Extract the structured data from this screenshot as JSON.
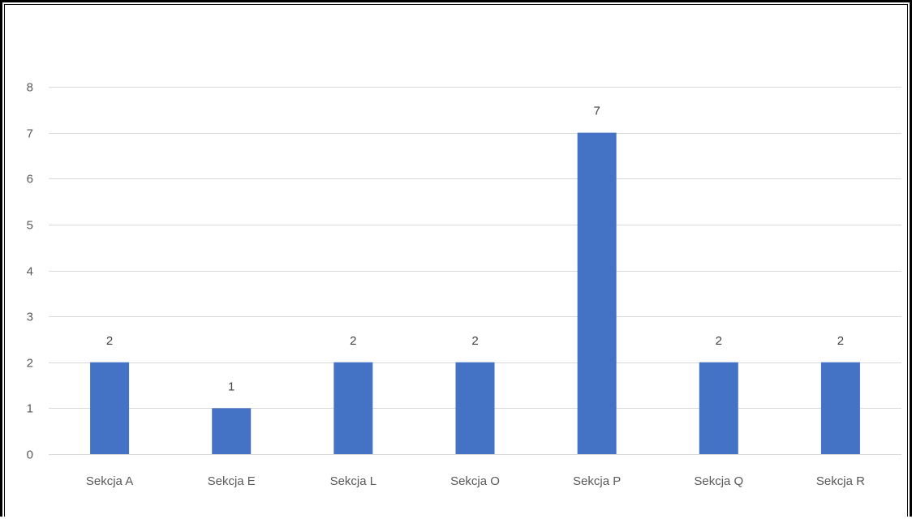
{
  "chart_data": {
    "type": "bar",
    "title": "",
    "xlabel": "",
    "ylabel": "",
    "categories": [
      "Sekcja A",
      "Sekcja E",
      "Sekcja L",
      "Sekcja O",
      "Sekcja P",
      "Sekcja Q",
      "Sekcja R"
    ],
    "values": [
      2,
      1,
      2,
      2,
      7,
      2,
      2
    ],
    "ylim": [
      0,
      8
    ],
    "yticks": [
      "0",
      "1",
      "2",
      "3",
      "4",
      "5",
      "6",
      "7",
      "8"
    ],
    "grid": true,
    "legend": "none",
    "data_labels": true,
    "bar_color": "#4472C4",
    "grid_color": "#D9D9D9"
  }
}
